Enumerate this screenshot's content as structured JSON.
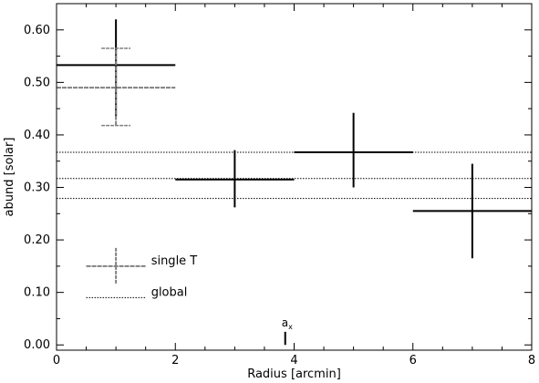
{
  "chart_data": {
    "type": "scatter",
    "title": "",
    "xlabel": "Radius [arcmin]",
    "ylabel": "abund [solar]",
    "xlim": [
      0,
      8
    ],
    "ylim": [
      -0.01,
      0.65
    ],
    "x_ticks": [
      0,
      2,
      4,
      6,
      8
    ],
    "x_tick_labels": [
      "0",
      "2",
      "4",
      "6",
      "8"
    ],
    "y_ticks": [
      0.0,
      0.1,
      0.2,
      0.3,
      0.4,
      0.5,
      0.6
    ],
    "y_tick_labels": [
      "0.00",
      "0.10",
      "0.20",
      "0.30",
      "0.40",
      "0.50",
      "0.60"
    ],
    "grid": false,
    "series": [
      {
        "color": "#000000",
        "points": [
          {
            "x": 1,
            "xerr": 1,
            "y": 0.533,
            "ylo": 0.435,
            "yhi": 0.62
          },
          {
            "x": 3,
            "xerr": 1,
            "y": 0.315,
            "ylo": 0.262,
            "yhi": 0.371
          },
          {
            "x": 5,
            "xerr": 1,
            "y": 0.367,
            "ylo": 0.3,
            "yhi": 0.442
          },
          {
            "x": 7,
            "xerr": 1,
            "y": 0.255,
            "ylo": 0.165,
            "yhi": 0.345
          }
        ]
      },
      {
        "name": "single T",
        "color": "#808080",
        "points": [
          {
            "x": 1,
            "xerr": 1,
            "y": 0.49,
            "ylo": 0.418,
            "yhi": 0.565
          }
        ]
      }
    ],
    "reference_lines": {
      "name": "global",
      "style": "dotted",
      "values": [
        0.367,
        0.317,
        0.279
      ]
    },
    "annotations": [
      {
        "label": "a",
        "subscript": "x",
        "x": 3.85,
        "y_bottom": 0.0,
        "y_top": 0.025
      }
    ],
    "legend": {
      "placement": "bottom-left",
      "entries": [
        {
          "label": "single T",
          "style": "errorbar-gray"
        },
        {
          "label": "global",
          "style": "dotted"
        }
      ]
    }
  }
}
